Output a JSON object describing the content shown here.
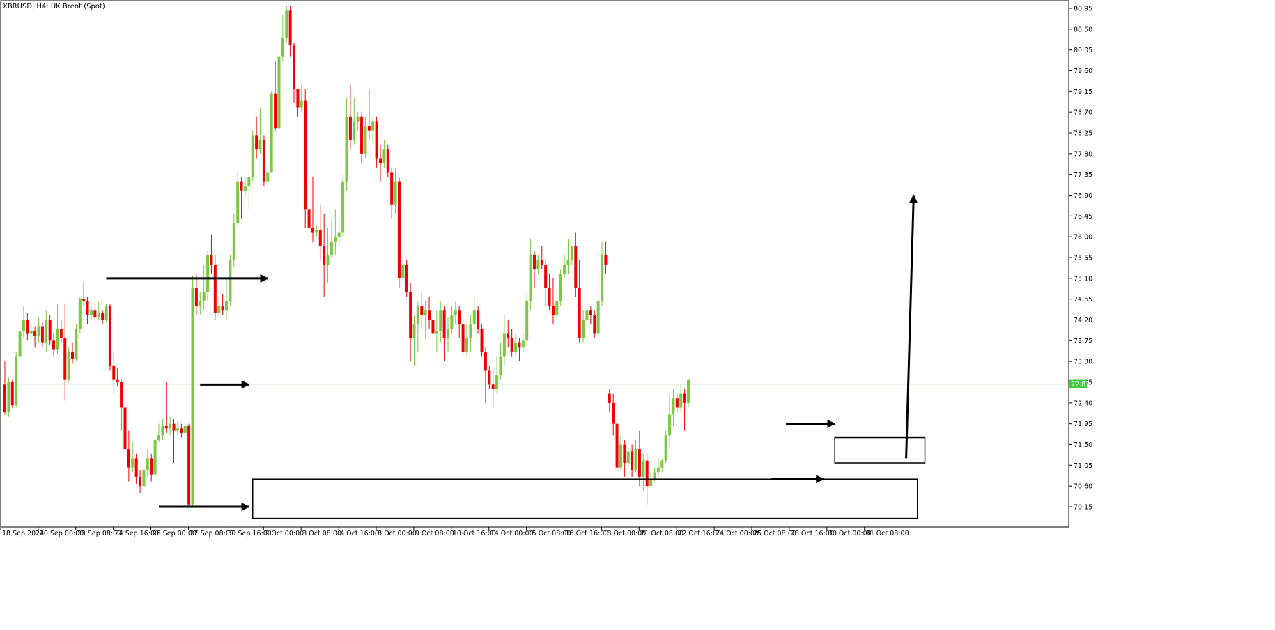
{
  "chart_data": {
    "type": "candlestick",
    "title": "XBRUSD, H4:  UK Brent (Spot)",
    "symbol": "XBRUSD",
    "timeframe": "H4",
    "instrument": "UK Brent (Spot)",
    "ylim": [
      69.95,
      81.05
    ],
    "y_ticks": [
      "80.95",
      "80.50",
      "80.05",
      "79.60",
      "79.15",
      "78.70",
      "78.25",
      "77.80",
      "77.35",
      "76.90",
      "76.45",
      "76.00",
      "75.55",
      "75.10",
      "74.65",
      "74.20",
      "73.75",
      "73.30",
      "72.85",
      "72.40",
      "71.95",
      "71.50",
      "71.05",
      "70.60",
      "70.15"
    ],
    "x_ticks": [
      {
        "label": "18 Sep 2024",
        "bar": 0
      },
      {
        "label": "20 Sep 00:00",
        "bar": 10
      },
      {
        "label": "23 Sep 08:00",
        "bar": 20
      },
      {
        "label": "24 Sep 16:00",
        "bar": 30
      },
      {
        "label": "26 Sep 00:00",
        "bar": 40
      },
      {
        "label": "27 Sep 08:00",
        "bar": 50
      },
      {
        "label": "30 Sep 16:00",
        "bar": 60
      },
      {
        "label": "2 Oct 00:00",
        "bar": 70
      },
      {
        "label": "3 Oct 08:00",
        "bar": 80
      },
      {
        "label": "4 Oct 16:00",
        "bar": 90
      },
      {
        "label": "8 Oct 00:00",
        "bar": 100
      },
      {
        "label": "9 Oct 08:00",
        "bar": 110
      },
      {
        "label": "10 Oct 16:00",
        "bar": 120
      },
      {
        "label": "14 Oct 00:00",
        "bar": 130
      },
      {
        "label": "15 Oct 08:00",
        "bar": 140
      },
      {
        "label": "16 Oct 16:00",
        "bar": 150
      },
      {
        "label": "18 Oct 00:00",
        "bar": 160
      },
      {
        "label": "21 Oct 08:00",
        "bar": 170
      },
      {
        "label": "22 Oct 16:00",
        "bar": 180
      },
      {
        "label": "24 Oct 00:00",
        "bar": 190
      },
      {
        "label": "25 Oct 08:00",
        "bar": 200
      },
      {
        "label": "28 Oct 16:00",
        "bar": 210
      },
      {
        "label": "30 Oct 00:00",
        "bar": 220
      },
      {
        "label": "31 Oct 08:00",
        "bar": 230
      }
    ],
    "current_price": "72.81",
    "candles": [
      [
        72.8,
        72.2,
        73.3,
        72.15
      ],
      [
        72.2,
        72.85,
        72.95,
        72.1
      ],
      [
        72.85,
        72.35,
        72.9,
        72.3
      ],
      [
        72.35,
        73.4,
        73.5,
        72.3
      ],
      [
        73.4,
        73.95,
        74.2,
        73.35
      ],
      [
        73.95,
        74.2,
        74.5,
        73.8
      ],
      [
        74.2,
        73.9,
        74.35,
        73.75
      ],
      [
        73.9,
        73.95,
        74.1,
        73.8
      ],
      [
        73.95,
        73.85,
        74.05,
        73.6
      ],
      [
        73.85,
        74.05,
        74.25,
        73.7
      ],
      [
        74.05,
        73.7,
        74.15,
        73.6
      ],
      [
        73.7,
        74.2,
        74.4,
        73.5
      ],
      [
        74.2,
        73.75,
        74.3,
        73.65
      ],
      [
        73.75,
        73.55,
        73.9,
        73.4
      ],
      [
        73.55,
        74.0,
        74.55,
        73.45
      ],
      [
        74.0,
        73.8,
        74.2,
        73.7
      ],
      [
        73.8,
        72.9,
        74.55,
        72.45
      ],
      [
        72.9,
        73.5,
        73.6,
        72.85
      ],
      [
        73.5,
        73.35,
        73.7,
        73.25
      ],
      [
        73.35,
        74.0,
        74.1,
        73.3
      ],
      [
        74.0,
        74.65,
        74.7,
        73.9
      ],
      [
        74.65,
        74.6,
        75.05,
        74.5
      ],
      [
        74.6,
        74.3,
        74.7,
        74.1
      ],
      [
        74.3,
        74.4,
        74.5,
        74.2
      ],
      [
        74.4,
        74.25,
        74.55,
        74.15
      ],
      [
        74.25,
        74.35,
        74.6,
        74.2
      ],
      [
        74.35,
        74.2,
        74.4,
        74.1
      ],
      [
        74.2,
        74.5,
        74.55,
        74.15
      ],
      [
        74.5,
        73.2,
        74.55,
        73.1
      ],
      [
        73.2,
        72.9,
        73.5,
        72.6
      ],
      [
        72.9,
        72.85,
        73.15,
        72.75
      ],
      [
        72.85,
        72.3,
        72.9,
        71.8
      ],
      [
        72.3,
        71.4,
        72.4,
        70.3
      ],
      [
        71.4,
        71.0,
        71.8,
        70.7
      ],
      [
        71.0,
        71.2,
        71.55,
        70.9
      ],
      [
        71.2,
        70.8,
        71.3,
        70.65
      ],
      [
        70.8,
        70.6,
        70.95,
        70.45
      ],
      [
        70.6,
        70.95,
        71.0,
        70.55
      ],
      [
        70.95,
        71.2,
        71.4,
        70.8
      ],
      [
        71.2,
        70.85,
        71.3,
        70.7
      ],
      [
        70.85,
        71.6,
        71.65,
        70.8
      ],
      [
        71.6,
        71.7,
        71.95,
        71.55
      ],
      [
        71.7,
        71.9,
        72.05,
        71.6
      ],
      [
        71.9,
        71.85,
        72.85,
        71.75
      ],
      [
        71.85,
        71.95,
        72.1,
        71.7
      ],
      [
        71.95,
        71.8,
        72.05,
        71.1
      ],
      [
        71.8,
        71.85,
        72.0,
        71.7
      ],
      [
        71.85,
        71.75,
        71.95,
        71.65
      ],
      [
        71.75,
        71.9,
        71.95,
        71.65
      ],
      [
        71.9,
        70.2,
        71.95,
        70.15
      ],
      [
        70.2,
        74.9,
        75.15,
        70.15
      ],
      [
        74.9,
        74.5,
        75.2,
        74.3
      ],
      [
        74.5,
        74.6,
        74.8,
        74.3
      ],
      [
        74.6,
        74.8,
        75.4,
        74.4
      ],
      [
        74.8,
        75.6,
        75.7,
        74.6
      ],
      [
        75.6,
        75.4,
        76.05,
        75.2
      ],
      [
        75.4,
        74.35,
        75.6,
        74.2
      ],
      [
        74.35,
        74.5,
        74.7,
        74.25
      ],
      [
        74.5,
        74.4,
        74.75,
        74.3
      ],
      [
        74.4,
        74.6,
        75.1,
        74.2
      ],
      [
        74.6,
        75.5,
        75.6,
        74.5
      ],
      [
        75.5,
        76.3,
        76.5,
        75.35
      ],
      [
        76.3,
        77.2,
        77.4,
        76.2
      ],
      [
        77.2,
        77.0,
        77.3,
        76.4
      ],
      [
        77.0,
        77.1,
        77.3,
        76.9
      ],
      [
        77.1,
        77.3,
        77.4,
        76.6
      ],
      [
        77.3,
        78.2,
        78.3,
        77.2
      ],
      [
        78.2,
        77.9,
        78.6,
        77.7
      ],
      [
        77.9,
        78.1,
        78.8,
        77.8
      ],
      [
        78.1,
        77.2,
        78.2,
        77.1
      ],
      [
        77.2,
        77.4,
        77.6,
        77.1
      ],
      [
        77.4,
        79.1,
        79.15,
        77.4
      ],
      [
        79.1,
        78.35,
        79.8,
        78.3
      ],
      [
        78.35,
        79.9,
        80.8,
        78.35
      ],
      [
        79.9,
        80.3,
        80.8,
        79.8
      ],
      [
        80.3,
        80.9,
        81.0,
        80.2
      ],
      [
        80.9,
        80.15,
        81.0,
        79.9
      ],
      [
        80.15,
        79.2,
        80.2,
        78.9
      ],
      [
        79.2,
        78.8,
        79.2,
        78.6
      ],
      [
        78.8,
        78.95,
        79.3,
        78.7
      ],
      [
        78.95,
        76.6,
        79.2,
        76.2
      ],
      [
        76.6,
        76.2,
        76.7,
        76.1
      ],
      [
        76.2,
        76.1,
        77.3,
        75.9
      ],
      [
        76.1,
        76.15,
        76.25,
        76.0
      ],
      [
        76.15,
        75.8,
        76.7,
        75.5
      ],
      [
        75.8,
        75.4,
        76.5,
        74.7
      ],
      [
        75.4,
        75.6,
        76.2,
        75.0
      ],
      [
        75.6,
        75.9,
        76.35,
        75.55
      ],
      [
        75.9,
        76.0,
        76.6,
        75.6
      ],
      [
        76.0,
        76.1,
        76.5,
        75.8
      ],
      [
        76.1,
        77.2,
        77.35,
        76.0
      ],
      [
        77.2,
        78.6,
        79.0,
        77.0
      ],
      [
        78.6,
        78.1,
        79.3,
        77.9
      ],
      [
        78.1,
        78.5,
        79.0,
        78.0
      ],
      [
        78.5,
        78.6,
        78.7,
        78.3
      ],
      [
        78.6,
        77.8,
        78.7,
        77.6
      ],
      [
        77.8,
        78.4,
        78.6,
        77.7
      ],
      [
        78.4,
        78.3,
        79.2,
        78.1
      ],
      [
        78.3,
        78.5,
        78.6,
        78.0
      ],
      [
        78.5,
        77.7,
        78.6,
        77.5
      ],
      [
        77.7,
        77.6,
        78.0,
        77.2
      ],
      [
        77.6,
        77.9,
        78.1,
        77.5
      ],
      [
        77.9,
        77.4,
        78.0,
        77.3
      ],
      [
        77.4,
        76.7,
        77.5,
        76.4
      ],
      [
        76.7,
        77.2,
        77.5,
        76.5
      ],
      [
        77.2,
        75.1,
        77.3,
        74.9
      ],
      [
        75.1,
        75.4,
        75.6,
        75.0
      ],
      [
        75.4,
        74.8,
        75.5,
        74.7
      ],
      [
        74.8,
        73.8,
        75.0,
        73.3
      ],
      [
        73.8,
        74.1,
        74.3,
        73.2
      ],
      [
        74.1,
        74.5,
        74.6,
        73.5
      ],
      [
        74.5,
        74.3,
        74.8,
        74.0
      ],
      [
        74.3,
        74.4,
        74.6,
        73.8
      ],
      [
        74.4,
        74.2,
        74.7,
        74.0
      ],
      [
        74.2,
        73.9,
        74.3,
        73.4
      ],
      [
        73.9,
        73.95,
        74.4,
        73.5
      ],
      [
        73.95,
        74.4,
        74.6,
        73.7
      ],
      [
        74.4,
        73.8,
        74.5,
        73.3
      ],
      [
        73.8,
        74.0,
        74.25,
        73.5
      ],
      [
        74.0,
        74.3,
        74.5,
        73.9
      ],
      [
        74.3,
        74.4,
        74.6,
        74.1
      ],
      [
        74.4,
        74.1,
        74.5,
        73.8
      ],
      [
        74.1,
        73.5,
        74.2,
        73.4
      ],
      [
        73.5,
        73.8,
        74.1,
        73.4
      ],
      [
        73.8,
        74.1,
        74.3,
        73.5
      ],
      [
        74.1,
        74.4,
        74.7,
        74.0
      ],
      [
        74.4,
        74.0,
        74.5,
        73.9
      ],
      [
        74.0,
        73.5,
        74.1,
        73.4
      ],
      [
        73.5,
        73.1,
        73.6,
        72.4
      ],
      [
        73.1,
        72.8,
        73.2,
        72.7
      ],
      [
        72.8,
        72.7,
        73.1,
        72.3
      ],
      [
        72.7,
        73.0,
        73.4,
        72.6
      ],
      [
        73.0,
        73.4,
        73.7,
        72.9
      ],
      [
        73.4,
        73.9,
        74.3,
        73.2
      ],
      [
        73.9,
        73.8,
        74.2,
        73.6
      ],
      [
        73.8,
        73.5,
        74.0,
        73.4
      ],
      [
        73.5,
        73.7,
        73.9,
        73.4
      ],
      [
        73.7,
        73.6,
        73.8,
        73.3
      ],
      [
        73.6,
        73.75,
        73.9,
        73.5
      ],
      [
        73.75,
        74.6,
        74.8,
        73.6
      ],
      [
        74.6,
        75.6,
        75.95,
        74.4
      ],
      [
        75.6,
        75.3,
        75.7,
        74.9
      ],
      [
        75.3,
        75.5,
        75.6,
        75.2
      ],
      [
        75.5,
        75.4,
        75.8,
        75.3
      ],
      [
        75.4,
        74.9,
        75.5,
        74.5
      ],
      [
        74.9,
        74.5,
        75.2,
        74.4
      ],
      [
        74.5,
        74.3,
        75.1,
        74.1
      ],
      [
        74.3,
        74.6,
        74.9,
        74.2
      ],
      [
        74.6,
        75.2,
        75.3,
        74.5
      ],
      [
        75.2,
        75.4,
        75.6,
        75.1
      ],
      [
        75.4,
        75.5,
        75.95,
        75.2
      ],
      [
        75.5,
        75.8,
        75.8,
        75.4
      ],
      [
        75.8,
        74.9,
        76.1,
        74.7
      ],
      [
        74.9,
        73.8,
        75.5,
        73.7
      ],
      [
        73.8,
        74.2,
        74.4,
        73.7
      ],
      [
        74.2,
        74.4,
        74.6,
        74.0
      ],
      [
        74.4,
        74.3,
        74.5,
        74.1
      ],
      [
        74.3,
        73.9,
        74.4,
        73.8
      ],
      [
        73.9,
        74.6,
        75.3,
        73.9
      ],
      [
        74.6,
        75.6,
        75.9,
        74.5
      ],
      [
        75.6,
        75.4,
        75.9,
        75.2
      ],
      [
        72.6,
        72.4,
        72.7,
        72.2
      ],
      [
        72.4,
        71.95,
        72.6,
        71.7
      ],
      [
        71.95,
        71.0,
        72.2,
        70.9
      ],
      [
        71.0,
        71.5,
        71.7,
        70.95
      ],
      [
        71.5,
        71.1,
        71.6,
        70.8
      ],
      [
        71.1,
        71.35,
        71.45,
        71.0
      ],
      [
        71.35,
        70.95,
        71.5,
        70.8
      ],
      [
        70.95,
        71.4,
        71.6,
        70.9
      ],
      [
        71.4,
        70.8,
        71.8,
        70.6
      ],
      [
        70.8,
        71.15,
        71.3,
        70.5
      ],
      [
        71.15,
        70.6,
        71.3,
        70.2
      ],
      [
        70.6,
        70.75,
        70.9,
        70.6
      ],
      [
        70.75,
        70.9,
        71.0,
        70.7
      ],
      [
        70.9,
        71.0,
        71.2,
        70.8
      ],
      [
        71.0,
        71.15,
        71.2,
        70.9
      ],
      [
        71.15,
        71.7,
        71.8,
        71.1
      ],
      [
        71.7,
        72.15,
        72.6,
        71.4
      ],
      [
        72.15,
        72.5,
        72.7,
        71.9
      ],
      [
        72.5,
        72.3,
        72.6,
        72.2
      ],
      [
        72.3,
        72.6,
        72.8,
        72.2
      ],
      [
        72.6,
        72.4,
        72.7,
        71.8
      ],
      [
        72.4,
        72.9,
        72.9,
        72.3
      ]
    ],
    "drawings": {
      "arrows": [
        {
          "from": [
            27,
            75.1
          ],
          "to": [
            70,
            75.1
          ]
        },
        {
          "from": [
            52,
            72.8
          ],
          "to": [
            65,
            72.8
          ]
        },
        {
          "from": [
            41,
            70.15
          ],
          "to": [
            65,
            70.15
          ]
        },
        {
          "from": [
            208,
            71.95
          ],
          "to": [
            221,
            71.95
          ]
        },
        {
          "from": [
            204,
            70.75
          ],
          "to": [
            218,
            70.75
          ]
        },
        {
          "from": [
            240,
            71.2
          ],
          "to": [
            242,
            76.9
          ]
        }
      ],
      "boxes": [
        {
          "x0": 66,
          "x1": 243,
          "top": 70.75,
          "bottom": 69.9
        },
        {
          "x0": 221,
          "x1": 245,
          "top": 71.65,
          "bottom": 71.1
        }
      ]
    },
    "colors": {
      "bull": "#7cc843",
      "bear": "#f00000",
      "price_line": "#3ccf3c",
      "axis": "#000000",
      "annotation": "#000000"
    }
  }
}
